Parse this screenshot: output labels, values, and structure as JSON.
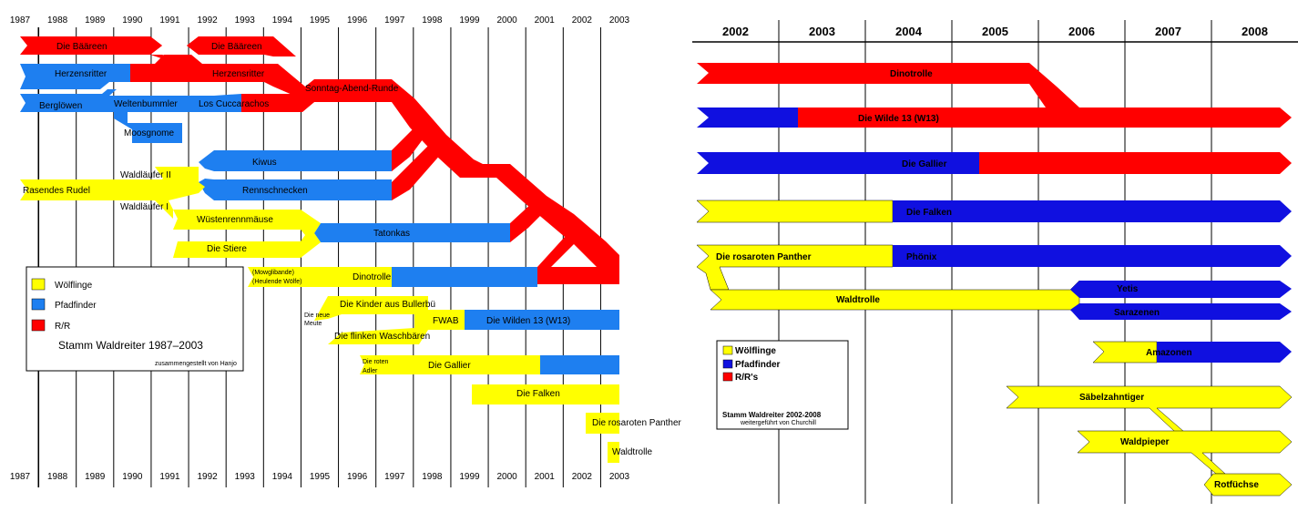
{
  "colors": {
    "yellow": "#ffff00",
    "blue": "#1e7ff0",
    "red": "#ff0000",
    "darkblue": "#1010e0"
  },
  "left": {
    "years": [
      "1987",
      "1988",
      "1989",
      "1990",
      "1991",
      "1992",
      "1993",
      "1994",
      "1995",
      "1996",
      "1997",
      "1998",
      "1999",
      "2000",
      "2001",
      "2002",
      "2003"
    ],
    "labels": {
      "baeren1": "Die Bääreen",
      "baeren2": "Die Bääreen",
      "herzensritter1": "Herzensritter",
      "herzensritter2": "Herzensritter",
      "bergloewen": "Berglöwen",
      "weltenbummler": "Weltenbummler",
      "cucaracha": "Los Cuccarachos",
      "sonntag": "Sonntag-Abend-Runde",
      "moosgnome": "Moosgnome",
      "kiwus": "Kiwus",
      "rennschnecken": "Rennschnecken",
      "waldlaeufer2": "Waldläufer II",
      "rasendes": "Rasendes Rudel",
      "waldlaeufer1": "Waldläufer I",
      "wuesten": "Wüstenrennmäuse",
      "stiere": "Die Stiere",
      "tatonkas": "Tatonkas",
      "mowgli1": "(Mowglibande)",
      "mowgli2": "(Heulende Wölfe)",
      "dinotrolle": "Dinotrolle",
      "kinder": "Die Kinder aus Bullerbü",
      "neue1": "Die neue",
      "neue2": "Meute",
      "fwab": "FWAB",
      "wilden": "Die Wilden 13 (W13)",
      "flinken": "Die flinken Waschbären",
      "roten1": "Die roten",
      "roten2": "Adler",
      "gallier": "Die Gallier",
      "falken": "Die Falken",
      "panther": "Die rosaroten Panther",
      "waldtrolle": "Waldtrolle"
    },
    "legend": {
      "items": [
        "Wölflinge",
        "Pfadfinder",
        "R/R"
      ],
      "title": "Stamm Waldreiter 1987–2003",
      "credit": "zusammengestellt von Hanjo"
    }
  },
  "right": {
    "years": [
      "2002",
      "2003",
      "2004",
      "2005",
      "2006",
      "2007",
      "2008"
    ],
    "labels": {
      "dinotrolle": "Dinotrolle",
      "wilde13": "Die Wilde 13 (W13)",
      "gallier": "Die Gallier",
      "falken": "Die Falken",
      "panther": "Die rosaroten Panther",
      "phoenix": "Phönix",
      "waldtrolle": "Waldtrolle",
      "yetis": "Yetis",
      "sarazenen": "Sarazenen",
      "amazonen": "Amazonen",
      "saebel": "Säbelzahntiger",
      "waldpieper": "Waldpieper",
      "rotfuechse": "Rotfüchse"
    },
    "legend": {
      "items": [
        "Wölflinge",
        "Pfadfinder",
        "R/R's"
      ],
      "title": "Stamm Waldreiter 2002-2008",
      "credit": "weitergeführt von Churchill"
    }
  }
}
